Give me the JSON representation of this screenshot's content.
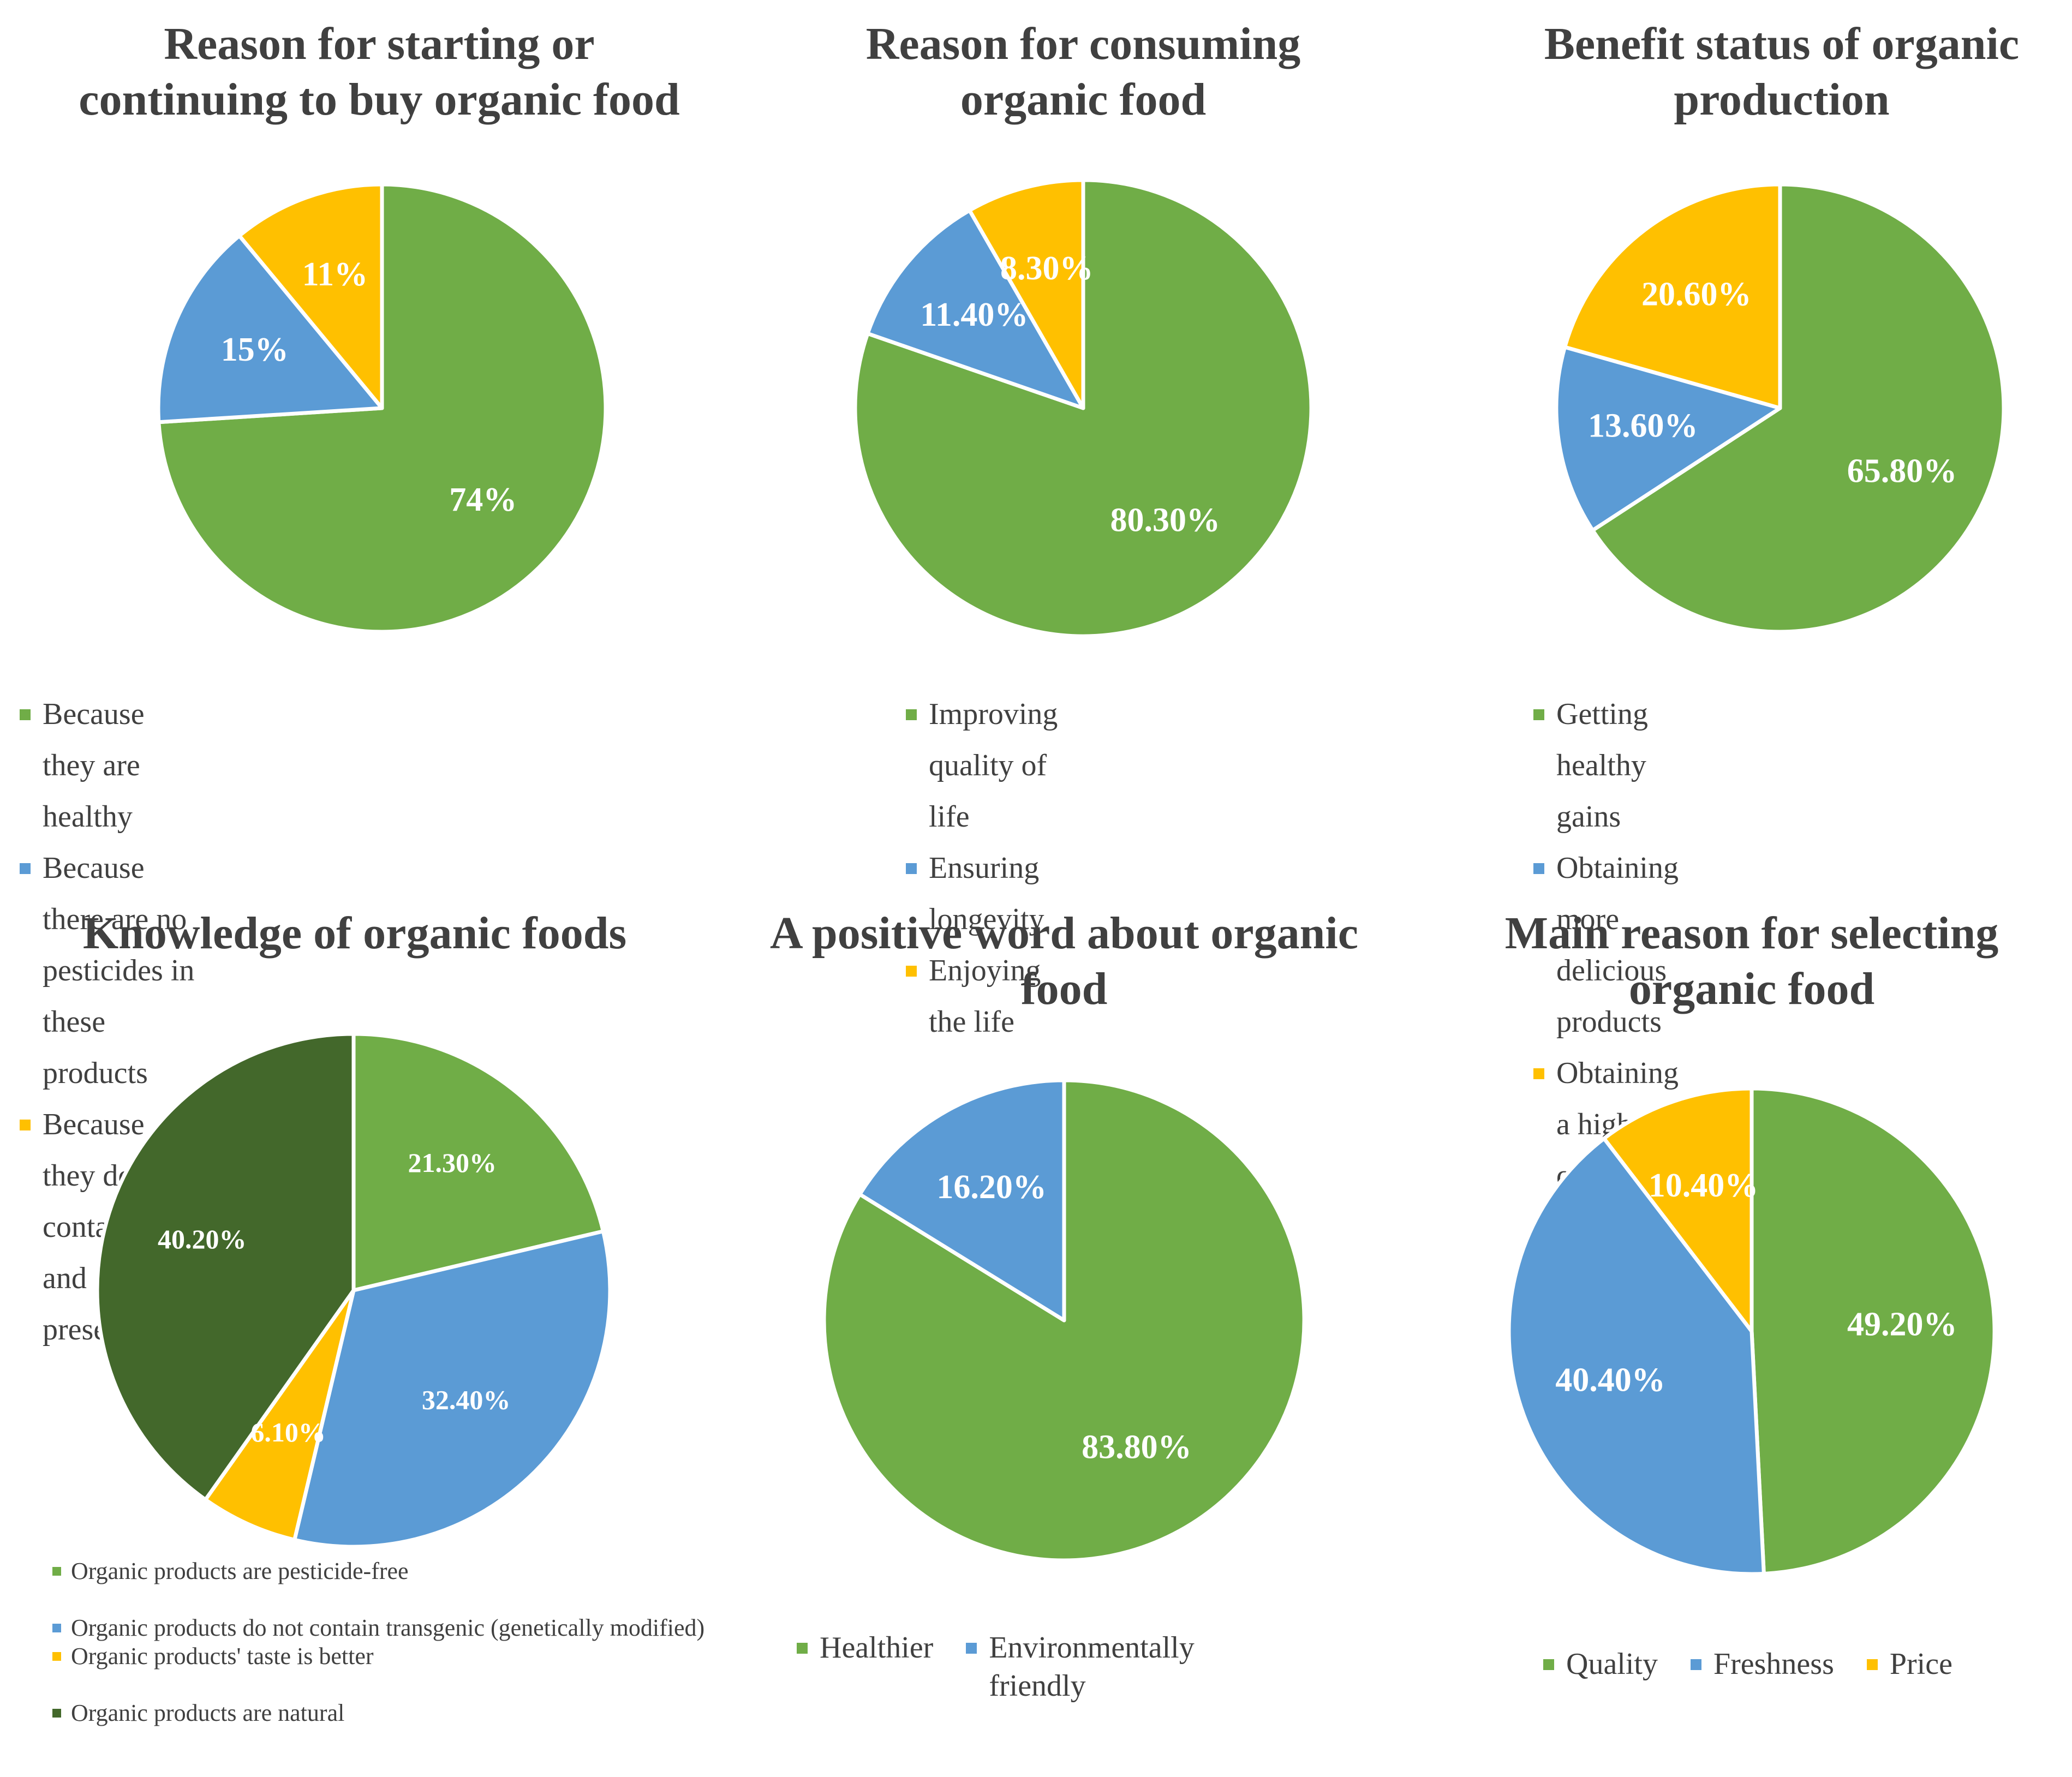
{
  "colors": {
    "green": "#70AD47",
    "blue": "#5B9BD5",
    "yellow": "#FFC000",
    "darkgreen": "#43682B"
  },
  "chart_data": [
    {
      "type": "pie",
      "title": "Reason for starting or continuing to buy organic food",
      "title_lines": [
        "Reason for starting or",
        "continuing to buy organic food"
      ],
      "slices": [
        {
          "name": "Because they are healthy",
          "value": 74,
          "label": "74%",
          "color": "#70AD47"
        },
        {
          "name": "Because there are no pesticides in these products",
          "value": 15,
          "label": "15%",
          "color": "#5B9BD5"
        },
        {
          "name": "Because they do not contain dyes and preservatives",
          "value": 11,
          "label": "11%",
          "color": "#FFC000"
        }
      ],
      "legend_position": "bottom"
    },
    {
      "type": "pie",
      "title": "Reason for consuming organic food",
      "title_lines": [
        "Reason for consuming",
        "organic food"
      ],
      "slices": [
        {
          "name": "Improving quality of life",
          "value": 80.3,
          "label": "80.30%",
          "color": "#70AD47"
        },
        {
          "name": "Ensuring longevity",
          "value": 11.4,
          "label": "11.40%",
          "color": "#5B9BD5"
        },
        {
          "name": "Enjoying the life",
          "value": 8.3,
          "label": "8.30%",
          "color": "#FFC000"
        }
      ],
      "legend_position": "bottom"
    },
    {
      "type": "pie",
      "title": "Benefit status of organic production",
      "title_lines": [
        "Benefit status of organic",
        "production"
      ],
      "slices": [
        {
          "name": "Getting healthy gains",
          "value": 65.8,
          "label": "65.80%",
          "color": "#70AD47"
        },
        {
          "name": "Obtaining more delicious products",
          "value": 13.6,
          "label": "13.60%",
          "color": "#5B9BD5"
        },
        {
          "name": "Obtaining a higher quality product",
          "value": 20.6,
          "label": "20.60%",
          "color": "#FFC000"
        }
      ],
      "legend_position": "bottom"
    },
    {
      "type": "pie",
      "title": "Knowledge of organic foods",
      "title_lines": [
        "Knowledge of organic foods"
      ],
      "slices": [
        {
          "name": "Organic products are pesticide-free",
          "value": 21.3,
          "label": "21.30%",
          "color": "#70AD47"
        },
        {
          "name": "Organic products do not contain transgenic (genetically modified)",
          "value": 32.4,
          "label": "32.40%",
          "color": "#5B9BD5"
        },
        {
          "name": "Organic products' taste is better",
          "value": 6.1,
          "label": "6.10%",
          "color": "#FFC000"
        },
        {
          "name": "Organic products are natural",
          "value": 40.2,
          "label": "40.20%",
          "color": "#43682B"
        }
      ],
      "legend_position": "bottom"
    },
    {
      "type": "pie",
      "title": "A positive word about organic food",
      "title_lines": [
        "A positive word about organic",
        "food"
      ],
      "slices": [
        {
          "name": "Healthier",
          "value": 83.8,
          "label": "83.80%",
          "color": "#70AD47"
        },
        {
          "name": "Environmentally friendly",
          "value": 16.2,
          "label": "16.20%",
          "color": "#5B9BD5"
        }
      ],
      "legend_position": "bottom"
    },
    {
      "type": "pie",
      "title": "Main reason for selecting organic food",
      "title_lines": [
        "Main reason for selecting",
        "organic food"
      ],
      "slices": [
        {
          "name": "Quality",
          "value": 49.2,
          "label": "49.20%",
          "color": "#70AD47"
        },
        {
          "name": "Freshness",
          "value": 40.4,
          "label": "40.40%",
          "color": "#5B9BD5"
        },
        {
          "name": "Price",
          "value": 10.4,
          "label": "10.40%",
          "color": "#FFC000"
        }
      ],
      "legend_position": "bottom"
    }
  ]
}
